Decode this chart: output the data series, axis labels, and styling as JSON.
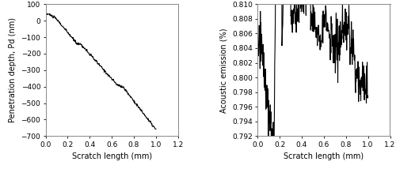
{
  "left_xlabel": "Scratch length (mm)",
  "left_ylabel": "Penetration depth, Pd (nm)",
  "left_xlim": [
    0,
    1.2
  ],
  "left_ylim": [
    -700,
    100
  ],
  "left_yticks": [
    100,
    0,
    -100,
    -200,
    -300,
    -400,
    -500,
    -600,
    -700
  ],
  "left_xticks": [
    0,
    0.2,
    0.4,
    0.6,
    0.8,
    1.0,
    1.2
  ],
  "right_xlabel": "Scratch length (mm)",
  "right_ylabel": "Acoustic emission (%)",
  "right_xlim": [
    0,
    1.2
  ],
  "right_ylim": [
    0.792,
    0.81
  ],
  "right_yticks": [
    0.792,
    0.794,
    0.796,
    0.798,
    0.8,
    0.802,
    0.804,
    0.806,
    0.808,
    0.81
  ],
  "right_xticks": [
    0,
    0.2,
    0.4,
    0.6,
    0.8,
    1.0,
    1.2
  ],
  "line_color": "#000000",
  "background_color": "#ffffff",
  "tick_fontsize": 6.5,
  "label_fontsize": 7.0
}
